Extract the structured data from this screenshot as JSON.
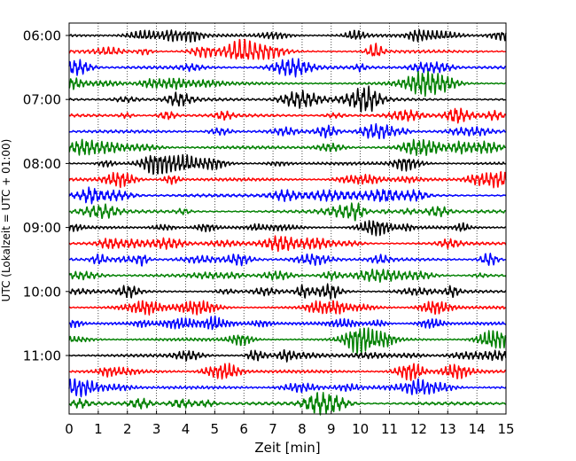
{
  "chart_data": {
    "type": "line",
    "title": "",
    "xlabel": "Zeit  [min]",
    "ylabel": "UTC (Lokalzeit = UTC + 01:00)",
    "xlim": [
      0,
      15
    ],
    "x_ticks": [
      "0",
      "1",
      "2",
      "3",
      "4",
      "5",
      "6",
      "7",
      "8",
      "9",
      "10",
      "11",
      "12",
      "13",
      "14",
      "15"
    ],
    "y_tick_labels": [
      "06:00",
      "07:00",
      "08:00",
      "09:00",
      "10:00",
      "11:00"
    ],
    "traces_per_hour": 4,
    "trace_count": 24,
    "trace_colors": [
      "#000000",
      "#ff0000",
      "#0000ff",
      "#008000"
    ],
    "grid": "vertical dotted at each minute",
    "legend": "none"
  }
}
